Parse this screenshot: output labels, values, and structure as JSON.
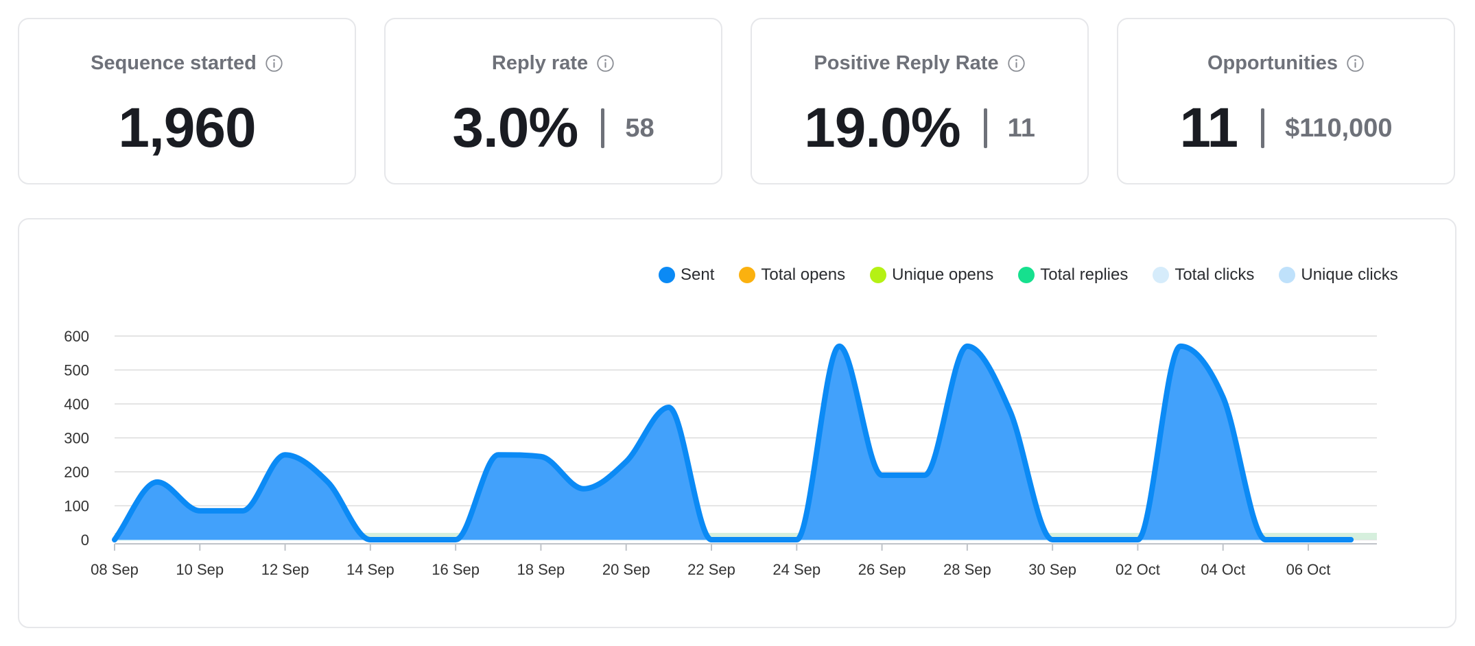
{
  "stats": [
    {
      "title": "Sequence started",
      "value": "1,960",
      "sub": ""
    },
    {
      "title": "Reply rate",
      "value": "3.0%",
      "sub": "58"
    },
    {
      "title": "Positive Reply Rate",
      "value": "19.0%",
      "sub": "11"
    },
    {
      "title": "Opportunities",
      "value": "11",
      "sub": "$110,000"
    }
  ],
  "icons": {
    "info": "info-circle-icon"
  },
  "colors": {
    "sent": "#0b8af5",
    "sent_fill": "#42a1fb",
    "total_opens": "#fbb10f",
    "unique_opens": "#b5f114",
    "total_replies": "#16e08e",
    "total_clicks": "#d6ecfb",
    "unique_clicks": "#bfe1fb",
    "grid": "#dcdcdc",
    "baseline_fill": "#d6efdd"
  },
  "chart_data": {
    "type": "area",
    "title": "",
    "xlabel": "",
    "ylabel": "",
    "ylim": [
      0,
      600
    ],
    "yticks": [
      0,
      100,
      200,
      300,
      400,
      500,
      600
    ],
    "date_range": [
      "08 Sep",
      "07 Oct"
    ],
    "xtick_labels": [
      "08 Sep",
      "10 Sep",
      "12 Sep",
      "14 Sep",
      "16 Sep",
      "18 Sep",
      "20 Sep",
      "22 Sep",
      "24 Sep",
      "26 Sep",
      "28 Sep",
      "30 Sep",
      "02 Oct",
      "04 Oct",
      "06 Oct"
    ],
    "legend": [
      {
        "name": "Sent",
        "color_key": "sent"
      },
      {
        "name": "Total opens",
        "color_key": "total_opens"
      },
      {
        "name": "Unique opens",
        "color_key": "unique_opens"
      },
      {
        "name": "Total replies",
        "color_key": "total_replies"
      },
      {
        "name": "Total clicks",
        "color_key": "total_clicks"
      },
      {
        "name": "Unique clicks",
        "color_key": "unique_clicks"
      }
    ],
    "legend_position": "top-right",
    "series": [
      {
        "name": "Sent",
        "color_key": "sent",
        "points": [
          [
            0,
            0
          ],
          [
            1,
            170
          ],
          [
            2,
            85
          ],
          [
            3,
            85
          ],
          [
            4,
            250
          ],
          [
            5,
            170
          ],
          [
            6,
            0
          ],
          [
            7,
            0
          ],
          [
            8,
            0
          ],
          [
            9,
            250
          ],
          [
            10,
            245
          ],
          [
            11,
            150
          ],
          [
            12,
            230
          ],
          [
            13,
            390
          ],
          [
            14,
            0
          ],
          [
            15,
            0
          ],
          [
            16,
            0
          ],
          [
            17,
            570
          ],
          [
            18,
            190
          ],
          [
            19,
            190
          ],
          [
            20,
            570
          ],
          [
            21,
            380
          ],
          [
            22,
            0
          ],
          [
            23,
            0
          ],
          [
            24,
            0
          ],
          [
            25,
            570
          ],
          [
            26,
            420
          ],
          [
            27,
            0
          ],
          [
            28,
            0
          ],
          [
            29,
            0
          ]
        ]
      },
      {
        "name": "Total opens",
        "color_key": "total_opens",
        "points": [
          [
            0,
            1
          ],
          [
            5,
            2
          ],
          [
            10,
            2
          ],
          [
            15,
            1
          ],
          [
            20,
            3
          ],
          [
            25,
            2
          ],
          [
            29,
            1
          ]
        ]
      },
      {
        "name": "Unique opens",
        "color_key": "unique_opens",
        "points": [
          [
            0,
            1
          ],
          [
            5,
            2
          ],
          [
            10,
            2
          ],
          [
            15,
            1
          ],
          [
            20,
            2
          ],
          [
            25,
            2
          ],
          [
            29,
            1
          ]
        ]
      },
      {
        "name": "Total replies",
        "color_key": "total_replies",
        "points": [
          [
            0,
            0
          ],
          [
            5,
            2
          ],
          [
            9,
            3
          ],
          [
            13,
            2
          ],
          [
            17,
            4
          ],
          [
            20,
            6
          ],
          [
            25,
            3
          ],
          [
            28,
            2
          ],
          [
            29,
            1
          ]
        ]
      },
      {
        "name": "Total clicks",
        "color_key": "total_clicks",
        "points": [
          [
            0,
            0
          ],
          [
            29,
            0
          ]
        ]
      },
      {
        "name": "Unique clicks",
        "color_key": "unique_clicks",
        "points": [
          [
            0,
            0
          ],
          [
            29,
            0
          ]
        ]
      }
    ]
  }
}
